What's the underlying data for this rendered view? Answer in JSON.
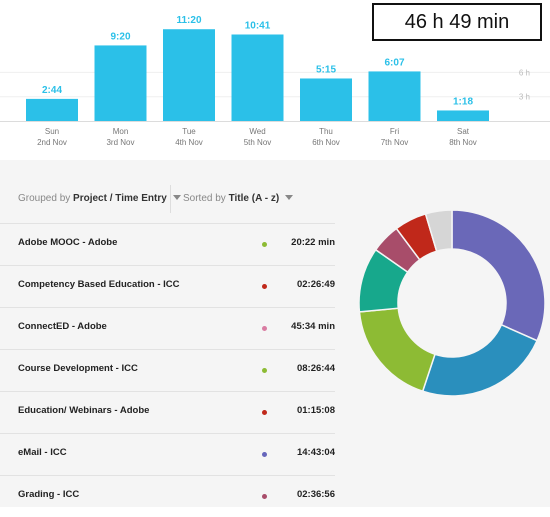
{
  "total_time": "46 h 49 min",
  "chart_data": {
    "type": "bar",
    "title": "",
    "days": [
      {
        "day": "Sun",
        "date": "2nd Nov",
        "label": "2:44",
        "hours": 2.73
      },
      {
        "day": "Mon",
        "date": "3rd Nov",
        "label": "9:20",
        "hours": 9.33
      },
      {
        "day": "Tue",
        "date": "4th Nov",
        "label": "11:20",
        "hours": 11.33
      },
      {
        "day": "Wed",
        "date": "5th Nov",
        "label": "10:41",
        "hours": 10.68
      },
      {
        "day": "Thu",
        "date": "6th Nov",
        "label": "5:15",
        "hours": 5.25
      },
      {
        "day": "Fri",
        "date": "7th Nov",
        "label": "6:07",
        "hours": 6.12
      },
      {
        "day": "Sat",
        "date": "8th Nov",
        "label": "1:18",
        "hours": 1.3
      }
    ],
    "y_ticks": [
      {
        "value": 3,
        "label": "3 h"
      },
      {
        "value": 6,
        "label": "6 h"
      }
    ],
    "ylim": [
      0,
      13
    ],
    "bar_color": "#2bc0e8",
    "grid": true
  },
  "controls": {
    "grouped_prefix": "Grouped by",
    "grouped_value": "Project / Time Entry",
    "sorted_prefix": "Sorted by",
    "sorted_value": "Title (A - z)"
  },
  "entries": [
    {
      "name": "Adobe MOOC - Adobe",
      "duration": "20:22 min",
      "color": "#8dbb34"
    },
    {
      "name": "Competency Based Education - ICC",
      "duration": "02:26:49",
      "color": "#c0281a"
    },
    {
      "name": "ConnectED - Adobe",
      "duration": "45:34 min",
      "color": "#d97ca2"
    },
    {
      "name": "Course Development - ICC",
      "duration": "08:26:44",
      "color": "#8dbb34"
    },
    {
      "name": "Education/ Webinars - Adobe",
      "duration": "01:15:08",
      "color": "#c0281a"
    },
    {
      "name": "eMail - ICC",
      "duration": "14:43:04",
      "color": "#6666bb"
    },
    {
      "name": "Grading - ICC",
      "duration": "02:36:56",
      "color": "#a84d6a"
    }
  ],
  "pie_data": {
    "type": "pie",
    "slices": [
      {
        "value": 31,
        "color": "#6a68b8"
      },
      {
        "value": 23,
        "color": "#2a8fbd"
      },
      {
        "value": 18,
        "color": "#8dbb34"
      },
      {
        "value": 11,
        "color": "#17a88c"
      },
      {
        "value": 5,
        "color": "#a84d6a"
      },
      {
        "value": 5.5,
        "color": "#c0281a"
      },
      {
        "value": 4.5,
        "color": "#d6d6d6"
      }
    ]
  }
}
